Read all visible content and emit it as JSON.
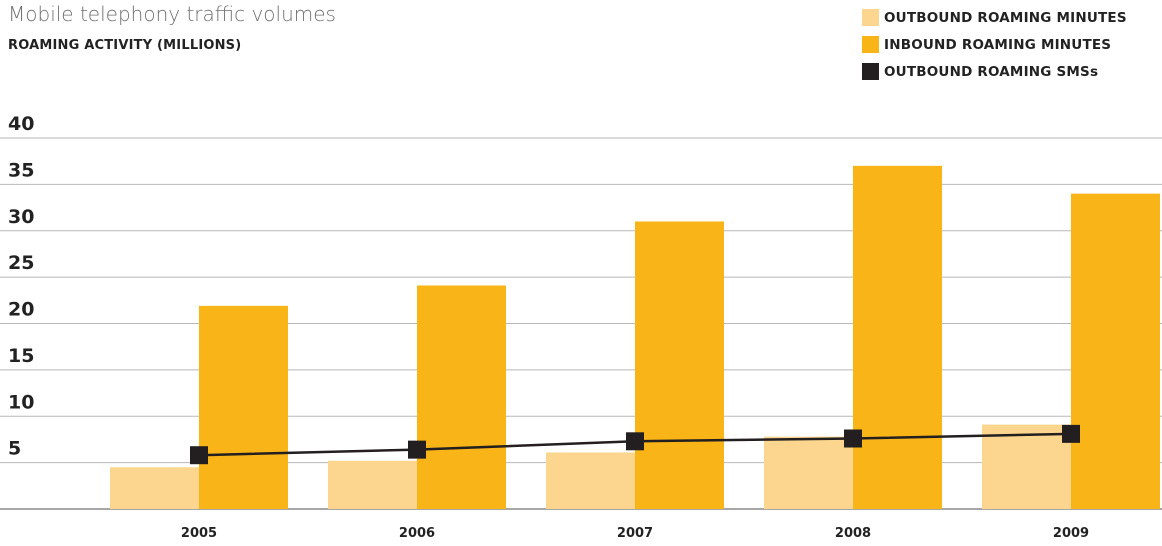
{
  "chart_data": {
    "type": "bar",
    "title": "Mobile telephony traffic volumes",
    "subtitle": "ROAMING ACTIVITY (MILLIONS)",
    "categories": [
      "2005",
      "2006",
      "2007",
      "2008",
      "2009"
    ],
    "ylim": [
      0,
      40
    ],
    "yticks": [
      "5",
      "10",
      "15",
      "20",
      "25",
      "30",
      "35",
      "40"
    ],
    "grid": true,
    "legend_position": "top-right",
    "series": [
      {
        "name": "OUTBOUND ROAMING MINUTES",
        "type": "bar",
        "color": "#fcd68e",
        "values": [
          4.5,
          5.2,
          6.1,
          7.8,
          9.1
        ]
      },
      {
        "name": "INBOUND ROAMING MINUTES",
        "type": "bar",
        "color": "#f9b417",
        "values": [
          21.9,
          24.1,
          31.0,
          37.0,
          34.0
        ]
      },
      {
        "name": "OUTBOUND ROAMING SMSs",
        "type": "line",
        "color": "#231f20",
        "values": [
          5.8,
          6.4,
          7.3,
          7.6,
          8.1
        ]
      }
    ]
  }
}
